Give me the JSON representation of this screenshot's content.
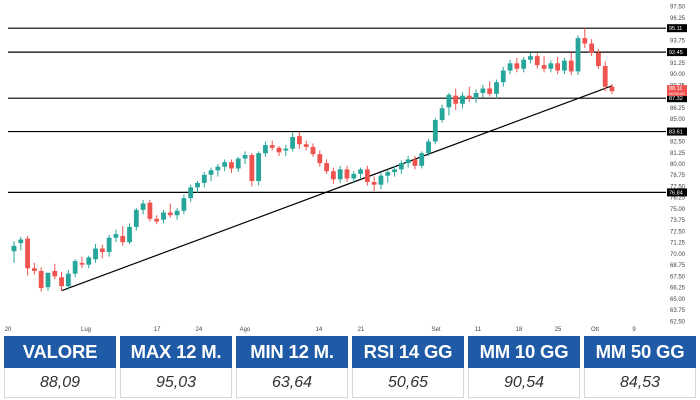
{
  "colors": {
    "up": "#26a69a",
    "down": "#ef5350",
    "header_bg": "#1e5aa6",
    "level_line": "#000000",
    "trend_line": "#000000"
  },
  "chart_data": {
    "type": "candlestick",
    "x_tick_labels": [
      "20",
      "Lug",
      "17",
      "24",
      "Ago",
      "14",
      "21",
      "Set",
      "11",
      "18",
      "25",
      "Ott",
      "9"
    ],
    "y_ticks": [
      62.5,
      63.75,
      65,
      66.25,
      67.5,
      68.75,
      70,
      71.25,
      72.5,
      73.75,
      75,
      76.25,
      77.5,
      78.75,
      80,
      81.25,
      82.5,
      83.75,
      85,
      86.25,
      87.5,
      88.75,
      90,
      91.25,
      92.5,
      93.75,
      95,
      96.25,
      97.5
    ],
    "y_tick_labels": [
      "62.50",
      "63.75",
      "65.00",
      "66.25",
      "67.50",
      "68.75",
      "70.00",
      "71.25",
      "72.50",
      "73.75",
      "75.00",
      "76.25",
      "77.50",
      "78.75",
      "80.00",
      "81.25",
      "82.50",
      "83.75",
      "85.00",
      "86.25",
      "87.50",
      "88.75",
      "90.00",
      "91.25",
      "92.50",
      "93.75",
      "95.00",
      "96.25",
      "97.50"
    ],
    "ylim": [
      62.2,
      97.8
    ],
    "horizontal_levels": [
      {
        "value": 95.11,
        "label": "95.11"
      },
      {
        "value": 92.45,
        "label": "92.45"
      },
      {
        "value": 87.32,
        "label": "87.32"
      },
      {
        "value": 83.61,
        "label": "83.61"
      },
      {
        "value": 76.84,
        "label": "76.84"
      }
    ],
    "price_labels": [
      {
        "value": 88.11,
        "label": "88.11",
        "sub": "00:00:00"
      }
    ],
    "trendline": {
      "start_index": 7,
      "start_value": 65.9,
      "end_index": 88,
      "end_value": 88.7
    },
    "candles": [
      {
        "o": 70.3,
        "h": 71.4,
        "l": 69.0,
        "c": 70.9
      },
      {
        "o": 71.2,
        "h": 71.9,
        "l": 70.4,
        "c": 71.6
      },
      {
        "o": 71.7,
        "h": 72.0,
        "l": 67.6,
        "c": 68.4
      },
      {
        "o": 68.4,
        "h": 69.0,
        "l": 67.7,
        "c": 68.1
      },
      {
        "o": 68.1,
        "h": 68.5,
        "l": 65.8,
        "c": 66.2
      },
      {
        "o": 66.3,
        "h": 67.9,
        "l": 65.9,
        "c": 67.9
      },
      {
        "o": 68.1,
        "h": 68.9,
        "l": 67.2,
        "c": 67.5
      },
      {
        "o": 67.4,
        "h": 68.0,
        "l": 65.9,
        "c": 66.4
      },
      {
        "o": 66.4,
        "h": 68.2,
        "l": 66.0,
        "c": 67.8
      },
      {
        "o": 67.8,
        "h": 69.4,
        "l": 67.4,
        "c": 69.2
      },
      {
        "o": 69.0,
        "h": 69.7,
        "l": 68.4,
        "c": 68.8
      },
      {
        "o": 68.8,
        "h": 69.8,
        "l": 68.4,
        "c": 69.6
      },
      {
        "o": 69.4,
        "h": 71.1,
        "l": 69.0,
        "c": 70.6
      },
      {
        "o": 70.6,
        "h": 71.0,
        "l": 69.5,
        "c": 70.2
      },
      {
        "o": 70.2,
        "h": 72.1,
        "l": 69.7,
        "c": 71.8
      },
      {
        "o": 71.8,
        "h": 72.7,
        "l": 71.3,
        "c": 72.2
      },
      {
        "o": 72.0,
        "h": 73.1,
        "l": 70.9,
        "c": 71.3
      },
      {
        "o": 71.3,
        "h": 73.4,
        "l": 71.1,
        "c": 73.0
      },
      {
        "o": 73.0,
        "h": 75.1,
        "l": 72.6,
        "c": 74.9
      },
      {
        "o": 74.9,
        "h": 76.0,
        "l": 74.4,
        "c": 75.6
      },
      {
        "o": 75.7,
        "h": 76.0,
        "l": 73.6,
        "c": 73.9
      },
      {
        "o": 73.9,
        "h": 74.3,
        "l": 73.3,
        "c": 73.6
      },
      {
        "o": 73.8,
        "h": 74.9,
        "l": 73.4,
        "c": 74.6
      },
      {
        "o": 74.6,
        "h": 75.6,
        "l": 74.0,
        "c": 74.3
      },
      {
        "o": 74.3,
        "h": 75.1,
        "l": 73.8,
        "c": 74.8
      },
      {
        "o": 74.8,
        "h": 76.6,
        "l": 74.4,
        "c": 76.2
      },
      {
        "o": 76.2,
        "h": 77.7,
        "l": 75.8,
        "c": 77.4
      },
      {
        "o": 77.4,
        "h": 78.1,
        "l": 76.8,
        "c": 77.9
      },
      {
        "o": 77.9,
        "h": 79.1,
        "l": 77.4,
        "c": 78.8
      },
      {
        "o": 78.8,
        "h": 79.6,
        "l": 78.1,
        "c": 79.3
      },
      {
        "o": 79.3,
        "h": 80.0,
        "l": 78.6,
        "c": 79.7
      },
      {
        "o": 79.7,
        "h": 80.5,
        "l": 79.2,
        "c": 80.2
      },
      {
        "o": 80.2,
        "h": 80.5,
        "l": 79.0,
        "c": 79.5
      },
      {
        "o": 79.5,
        "h": 80.8,
        "l": 79.1,
        "c": 80.6
      },
      {
        "o": 80.6,
        "h": 81.4,
        "l": 80.0,
        "c": 81.0
      },
      {
        "o": 81.0,
        "h": 81.2,
        "l": 77.5,
        "c": 78.1
      },
      {
        "o": 78.1,
        "h": 81.4,
        "l": 77.6,
        "c": 81.2
      },
      {
        "o": 81.2,
        "h": 82.5,
        "l": 80.8,
        "c": 82.1
      },
      {
        "o": 82.1,
        "h": 82.6,
        "l": 81.5,
        "c": 81.8
      },
      {
        "o": 81.8,
        "h": 82.0,
        "l": 80.9,
        "c": 81.3
      },
      {
        "o": 81.5,
        "h": 82.1,
        "l": 80.9,
        "c": 81.7
      },
      {
        "o": 81.7,
        "h": 83.5,
        "l": 81.4,
        "c": 83.0
      },
      {
        "o": 83.1,
        "h": 83.6,
        "l": 81.7,
        "c": 82.2
      },
      {
        "o": 82.2,
        "h": 82.6,
        "l": 81.5,
        "c": 81.9
      },
      {
        "o": 81.9,
        "h": 82.3,
        "l": 80.8,
        "c": 81.1
      },
      {
        "o": 81.1,
        "h": 81.5,
        "l": 79.7,
        "c": 80.1
      },
      {
        "o": 80.1,
        "h": 80.5,
        "l": 78.9,
        "c": 79.2
      },
      {
        "o": 79.2,
        "h": 79.6,
        "l": 77.8,
        "c": 78.3
      },
      {
        "o": 78.3,
        "h": 79.8,
        "l": 77.9,
        "c": 79.4
      },
      {
        "o": 79.4,
        "h": 79.8,
        "l": 78.0,
        "c": 78.4
      },
      {
        "o": 78.4,
        "h": 79.2,
        "l": 77.9,
        "c": 78.9
      },
      {
        "o": 78.9,
        "h": 79.6,
        "l": 78.4,
        "c": 79.4
      },
      {
        "o": 79.4,
        "h": 79.8,
        "l": 77.6,
        "c": 78.0
      },
      {
        "o": 78.0,
        "h": 78.6,
        "l": 77.0,
        "c": 77.7
      },
      {
        "o": 77.7,
        "h": 79.1,
        "l": 77.2,
        "c": 78.7
      },
      {
        "o": 78.7,
        "h": 79.4,
        "l": 77.9,
        "c": 79.1
      },
      {
        "o": 79.1,
        "h": 79.8,
        "l": 78.6,
        "c": 79.4
      },
      {
        "o": 79.4,
        "h": 80.4,
        "l": 78.9,
        "c": 80.1
      },
      {
        "o": 80.1,
        "h": 80.9,
        "l": 79.6,
        "c": 80.5
      },
      {
        "o": 80.5,
        "h": 80.9,
        "l": 79.4,
        "c": 79.8
      },
      {
        "o": 79.8,
        "h": 81.4,
        "l": 79.5,
        "c": 81.2
      },
      {
        "o": 81.2,
        "h": 82.8,
        "l": 80.9,
        "c": 82.5
      },
      {
        "o": 82.5,
        "h": 85.1,
        "l": 82.2,
        "c": 84.9
      },
      {
        "o": 84.9,
        "h": 86.6,
        "l": 84.6,
        "c": 86.2
      },
      {
        "o": 86.3,
        "h": 87.9,
        "l": 85.4,
        "c": 87.7
      },
      {
        "o": 87.6,
        "h": 88.4,
        "l": 86.0,
        "c": 86.7
      },
      {
        "o": 86.7,
        "h": 88.0,
        "l": 86.2,
        "c": 87.6
      },
      {
        "o": 87.6,
        "h": 88.6,
        "l": 86.9,
        "c": 87.3
      },
      {
        "o": 87.3,
        "h": 88.3,
        "l": 86.8,
        "c": 87.9
      },
      {
        "o": 87.9,
        "h": 88.8,
        "l": 87.4,
        "c": 88.4
      },
      {
        "o": 88.4,
        "h": 89.2,
        "l": 87.5,
        "c": 87.8
      },
      {
        "o": 87.8,
        "h": 89.4,
        "l": 87.3,
        "c": 89.1
      },
      {
        "o": 89.1,
        "h": 90.8,
        "l": 88.6,
        "c": 90.4
      },
      {
        "o": 90.4,
        "h": 91.6,
        "l": 90.0,
        "c": 91.2
      },
      {
        "o": 91.2,
        "h": 91.8,
        "l": 90.2,
        "c": 90.6
      },
      {
        "o": 90.6,
        "h": 91.9,
        "l": 90.2,
        "c": 91.6
      },
      {
        "o": 91.6,
        "h": 92.4,
        "l": 91.2,
        "c": 92.0
      },
      {
        "o": 92.0,
        "h": 92.3,
        "l": 90.6,
        "c": 91.0
      },
      {
        "o": 91.0,
        "h": 92.0,
        "l": 90.2,
        "c": 90.6
      },
      {
        "o": 90.6,
        "h": 91.5,
        "l": 90.2,
        "c": 91.2
      },
      {
        "o": 91.2,
        "h": 91.9,
        "l": 90.0,
        "c": 90.4
      },
      {
        "o": 90.4,
        "h": 91.8,
        "l": 90.0,
        "c": 91.5
      },
      {
        "o": 91.5,
        "h": 92.4,
        "l": 89.9,
        "c": 90.3
      },
      {
        "o": 90.3,
        "h": 94.3,
        "l": 89.9,
        "c": 94.0
      },
      {
        "o": 94.0,
        "h": 95.1,
        "l": 92.9,
        "c": 93.4
      },
      {
        "o": 93.4,
        "h": 93.9,
        "l": 92.0,
        "c": 92.4
      },
      {
        "o": 92.4,
        "h": 92.8,
        "l": 90.6,
        "c": 90.9
      },
      {
        "o": 90.9,
        "h": 91.4,
        "l": 88.1,
        "c": 88.6
      },
      {
        "o": 88.6,
        "h": 88.9,
        "l": 87.8,
        "c": 88.1
      }
    ]
  },
  "stats": {
    "headers": [
      "VALORE",
      "MAX 12 M.",
      "MIN 12 M.",
      "RSI 14 GG",
      "MM 10 GG",
      "MM 50 GG"
    ],
    "values": [
      "88,09",
      "95,03",
      "63,64",
      "50,65",
      "90,54",
      "84,53"
    ]
  }
}
